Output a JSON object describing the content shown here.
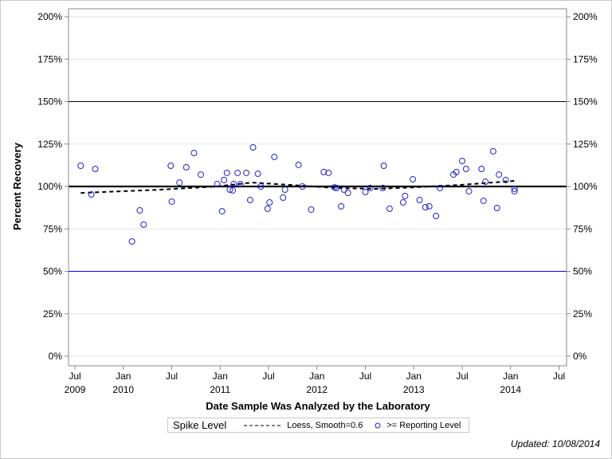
{
  "chart_data": {
    "type": "scatter",
    "xlabel": "Date Sample Was Analyzed by the Laboratory",
    "ylabel": "Percent Recovery",
    "xlim": [
      2009.45,
      2014.55
    ],
    "ylim": [
      0,
      200
    ],
    "y_ticks": [
      "0%",
      "25%",
      "50%",
      "75%",
      "100%",
      "125%",
      "150%",
      "175%",
      "200%"
    ],
    "y_tick_values": [
      0,
      25,
      50,
      75,
      100,
      125,
      150,
      175,
      200
    ],
    "x_ticks": [
      {
        "value": 2009.5,
        "month": "Jul",
        "year": "2009"
      },
      {
        "value": 2010.0,
        "month": "Jan",
        "year": "2010"
      },
      {
        "value": 2010.5,
        "month": "Jul",
        "year": ""
      },
      {
        "value": 2011.0,
        "month": "Jan",
        "year": "2011"
      },
      {
        "value": 2011.5,
        "month": "Jul",
        "year": ""
      },
      {
        "value": 2012.0,
        "month": "Jan",
        "year": "2012"
      },
      {
        "value": 2012.5,
        "month": "Jul",
        "year": ""
      },
      {
        "value": 2013.0,
        "month": "Jan",
        "year": "2013"
      },
      {
        "value": 2013.5,
        "month": "Jul",
        "year": ""
      },
      {
        "value": 2014.0,
        "month": "Jan",
        "year": "2014"
      },
      {
        "value": 2014.5,
        "month": "Jul",
        "year": ""
      }
    ],
    "grid": true,
    "right_axis_mirrored": true,
    "reference_lines": [
      {
        "y": 150,
        "color": "#000000",
        "width": "thin"
      },
      {
        "y": 100,
        "color": "#000000",
        "width": "thick"
      },
      {
        "y": 50,
        "color": "#0000ff",
        "width": "thin"
      }
    ],
    "series": [
      {
        "name": ">= Reporting Level",
        "marker": "open-circle",
        "color": "#2020d0",
        "points": [
          [
            2009.56,
            112.2
          ],
          [
            2009.67,
            95.3
          ],
          [
            2009.71,
            110.3
          ],
          [
            2010.09,
            67.6
          ],
          [
            2010.17,
            85.9
          ],
          [
            2010.21,
            77.5
          ],
          [
            2010.49,
            112.2
          ],
          [
            2010.5,
            91.1
          ],
          [
            2010.58,
            102.3
          ],
          [
            2010.65,
            111.3
          ],
          [
            2010.73,
            119.7
          ],
          [
            2010.8,
            107.0
          ],
          [
            2010.97,
            101.4
          ],
          [
            2011.02,
            85.4
          ],
          [
            2011.04,
            103.8
          ],
          [
            2011.07,
            108.0
          ],
          [
            2011.1,
            98.1
          ],
          [
            2011.13,
            97.7
          ],
          [
            2011.14,
            101.4
          ],
          [
            2011.18,
            108.0
          ],
          [
            2011.21,
            101.4
          ],
          [
            2011.27,
            108.0
          ],
          [
            2011.31,
            92.0
          ],
          [
            2011.34,
            123.0
          ],
          [
            2011.39,
            107.5
          ],
          [
            2011.42,
            100.0
          ],
          [
            2011.49,
            86.9
          ],
          [
            2011.51,
            90.6
          ],
          [
            2011.56,
            117.4
          ],
          [
            2011.65,
            93.4
          ],
          [
            2011.67,
            98.1
          ],
          [
            2011.81,
            112.7
          ],
          [
            2011.85,
            100.0
          ],
          [
            2011.94,
            86.4
          ],
          [
            2012.07,
            108.5
          ],
          [
            2012.12,
            108.0
          ],
          [
            2012.18,
            99.5
          ],
          [
            2012.2,
            99.1
          ],
          [
            2012.25,
            88.3
          ],
          [
            2012.28,
            98.1
          ],
          [
            2012.32,
            96.2
          ],
          [
            2012.5,
            96.7
          ],
          [
            2012.55,
            99.1
          ],
          [
            2012.68,
            99.1
          ],
          [
            2012.69,
            112.2
          ],
          [
            2012.75,
            86.9
          ],
          [
            2012.89,
            90.6
          ],
          [
            2012.91,
            94.4
          ],
          [
            2012.99,
            104.2
          ],
          [
            2013.06,
            92.0
          ],
          [
            2013.12,
            87.8
          ],
          [
            2013.16,
            88.3
          ],
          [
            2013.23,
            82.6
          ],
          [
            2013.27,
            99.1
          ],
          [
            2013.41,
            107.0
          ],
          [
            2013.44,
            108.5
          ],
          [
            2013.5,
            115.0
          ],
          [
            2013.54,
            110.3
          ],
          [
            2013.57,
            97.2
          ],
          [
            2013.7,
            110.3
          ],
          [
            2013.72,
            91.5
          ],
          [
            2013.74,
            102.8
          ],
          [
            2013.82,
            120.7
          ],
          [
            2013.86,
            87.3
          ],
          [
            2013.88,
            107.0
          ],
          [
            2013.95,
            103.8
          ],
          [
            2014.04,
            98.6
          ],
          [
            2014.04,
            97.2
          ]
        ]
      },
      {
        "name": "Loess, Smooth=0.6",
        "line": "dashed",
        "color": "#000000",
        "points": [
          [
            2009.56,
            96.2
          ],
          [
            2010.38,
            98.1
          ],
          [
            2010.96,
            100.0
          ],
          [
            2011.33,
            102.3
          ],
          [
            2011.7,
            101.0
          ],
          [
            2012.19,
            99.1
          ],
          [
            2012.6,
            98.6
          ],
          [
            2013.01,
            99.5
          ],
          [
            2013.5,
            101.0
          ],
          [
            2014.04,
            103.3
          ]
        ]
      }
    ]
  },
  "legend": {
    "title": "Spike Level",
    "loess_label": "Loess, Smooth=0.6",
    "points_label": ">= Reporting Level"
  },
  "footer": {
    "updated": "Updated: 10/08/2014"
  }
}
